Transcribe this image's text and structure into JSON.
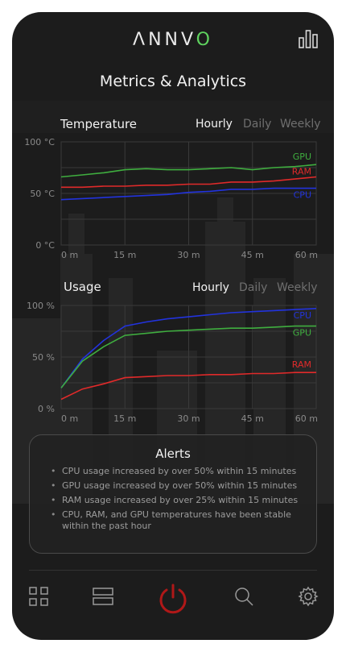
{
  "app": {
    "logo_text": "ΛNNV",
    "logo_accent": "O",
    "title": "Metrics & Analytics"
  },
  "colors": {
    "background": "#1c1c1c",
    "gpu": "#3fae3f",
    "ram": "#e02a2a",
    "cpu": "#2233dd",
    "power": "#b01818",
    "accent_logo": "#5fd35f"
  },
  "temperature": {
    "title": "Temperature",
    "tabs": [
      {
        "label": "Hourly",
        "active": true
      },
      {
        "label": "Daily",
        "active": false
      },
      {
        "label": "Weekly",
        "active": false
      }
    ],
    "chart_data": {
      "type": "line",
      "x": [
        0,
        5,
        10,
        15,
        20,
        25,
        30,
        35,
        40,
        45,
        50,
        55,
        60
      ],
      "x_tick_labels": [
        "0 m",
        "15 m",
        "30 m",
        "45 m",
        "60 m"
      ],
      "y_tick_labels": [
        "100 °C",
        "50 °C",
        "0 °C"
      ],
      "ylim": [
        0,
        100
      ],
      "xlim": [
        0,
        60
      ],
      "series": [
        {
          "name": "GPU",
          "values": [
            66,
            68,
            70,
            73,
            74,
            73,
            73,
            74,
            75,
            73,
            75,
            76,
            78
          ]
        },
        {
          "name": "RAM",
          "values": [
            56,
            56,
            57,
            57,
            58,
            58,
            59,
            59,
            61,
            61,
            62,
            64,
            66
          ]
        },
        {
          "name": "CPU",
          "values": [
            44,
            45,
            46,
            47,
            48,
            49,
            51,
            52,
            54,
            54,
            55,
            55,
            55
          ]
        }
      ]
    }
  },
  "usage": {
    "title": "Usage",
    "tabs": [
      {
        "label": "Hourly",
        "active": true
      },
      {
        "label": "Daily",
        "active": false
      },
      {
        "label": "Weekly",
        "active": false
      }
    ],
    "chart_data": {
      "type": "line",
      "x": [
        0,
        5,
        10,
        15,
        20,
        25,
        30,
        35,
        40,
        45,
        50,
        55,
        60
      ],
      "x_tick_labels": [
        "0 m",
        "15 m",
        "30 m",
        "45 m",
        "60 m"
      ],
      "y_tick_labels": [
        "100 %",
        "50 %",
        "0 %"
      ],
      "ylim": [
        0,
        100
      ],
      "xlim": [
        0,
        60
      ],
      "series": [
        {
          "name": "CPU",
          "values": [
            20,
            48,
            66,
            80,
            84,
            87,
            89,
            91,
            93,
            94,
            95,
            96,
            97
          ]
        },
        {
          "name": "GPU",
          "values": [
            20,
            46,
            60,
            71,
            73,
            75,
            76,
            77,
            78,
            78,
            79,
            80,
            80
          ]
        },
        {
          "name": "RAM",
          "values": [
            9,
            19,
            24,
            30,
            31,
            32,
            32,
            33,
            33,
            34,
            34,
            35,
            35
          ]
        }
      ]
    }
  },
  "alerts": {
    "title": "Alerts",
    "items": [
      "CPU usage increased by over 50% within 15 minutes",
      "GPU usage increased by over 50% within 15 minutes",
      "RAM usage increased by over 25% within 15 minutes",
      "CPU, RAM, and GPU temperatures have been stable within the past hour"
    ]
  },
  "nav": {
    "items": [
      {
        "name": "dashboard-grid-icon"
      },
      {
        "name": "list-view-icon"
      },
      {
        "name": "power-icon"
      },
      {
        "name": "search-icon"
      },
      {
        "name": "settings-gear-icon"
      }
    ]
  }
}
